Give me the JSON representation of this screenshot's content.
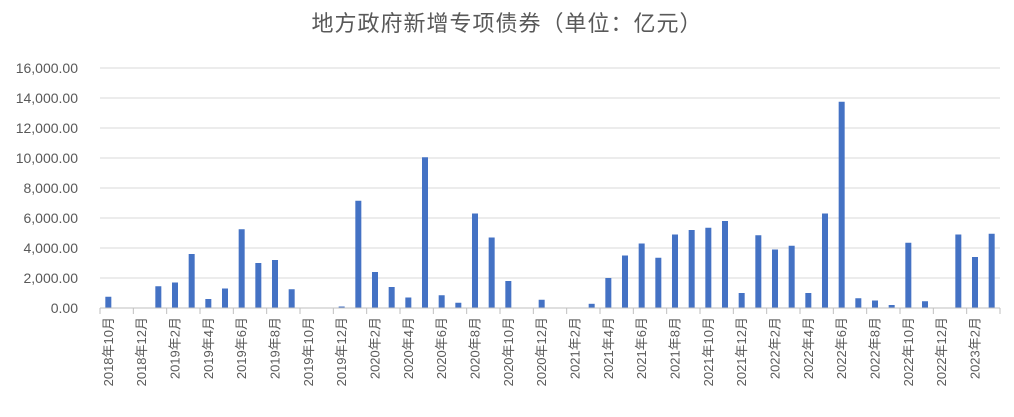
{
  "chart_data": {
    "type": "bar",
    "title": "地方政府新增专项债券（单位：亿元）",
    "xlabel": "",
    "ylabel": "",
    "ylim": [
      0,
      16000
    ],
    "yticks": [
      "0.00",
      "2,000.00",
      "4,000.00",
      "6,000.00",
      "8,000.00",
      "10,000.00",
      "12,000.00",
      "14,000.00",
      "16,000.00"
    ],
    "grid": true,
    "legend": "none",
    "bar_color": "#4472C4",
    "categories": [
      "2018年10月",
      "2018年11月",
      "2018年12月",
      "2019年1月",
      "2019年2月",
      "2019年3月",
      "2019年4月",
      "2019年5月",
      "2019年6月",
      "2019年7月",
      "2019年8月",
      "2019年9月",
      "2019年10月",
      "2019年11月",
      "2019年12月",
      "2020年1月",
      "2020年2月",
      "2020年3月",
      "2020年4月",
      "2020年5月",
      "2020年6月",
      "2020年7月",
      "2020年8月",
      "2020年9月",
      "2020年10月",
      "2020年11月",
      "2020年12月",
      "2021年1月",
      "2021年2月",
      "2021年3月",
      "2021年4月",
      "2021年5月",
      "2021年6月",
      "2021年7月",
      "2021年8月",
      "2021年9月",
      "2021年10月",
      "2021年11月",
      "2021年12月",
      "2022年1月",
      "2022年2月",
      "2022年3月",
      "2022年4月",
      "2022年5月",
      "2022年6月",
      "2022年7月",
      "2022年8月",
      "2022年9月",
      "2022年10月",
      "2022年11月",
      "2022年12月",
      "2023年1月",
      "2023年2月",
      "2023年3月"
    ],
    "tick_labels": [
      "2018年10月",
      "2018年12月",
      "2019年2月",
      "2019年4月",
      "2019年6月",
      "2019年8月",
      "2019年10月",
      "2019年12月",
      "2020年2月",
      "2020年4月",
      "2020年6月",
      "2020年8月",
      "2020年10月",
      "2020年12月",
      "2021年2月",
      "2021年4月",
      "2021年6月",
      "2021年8月",
      "2021年10月",
      "2021年12月",
      "2022年2月",
      "2022年4月",
      "2022年6月",
      "2022年8月",
      "2022年10月",
      "2022年12月",
      "2023年2月"
    ],
    "values": [
      750,
      0,
      0,
      1450,
      1700,
      3600,
      600,
      1300,
      5250,
      3000,
      3200,
      1250,
      0,
      0,
      100,
      7150,
      2400,
      1400,
      700,
      10050,
      850,
      350,
      6300,
      4700,
      1800,
      0,
      550,
      0,
      0,
      280,
      2000,
      3500,
      4300,
      3350,
      4900,
      5200,
      5350,
      5800,
      1000,
      4850,
      3900,
      4150,
      1000,
      6300,
      13750,
      650,
      500,
      200,
      4350,
      450,
      0,
      4900,
      3400,
      4950
    ]
  }
}
